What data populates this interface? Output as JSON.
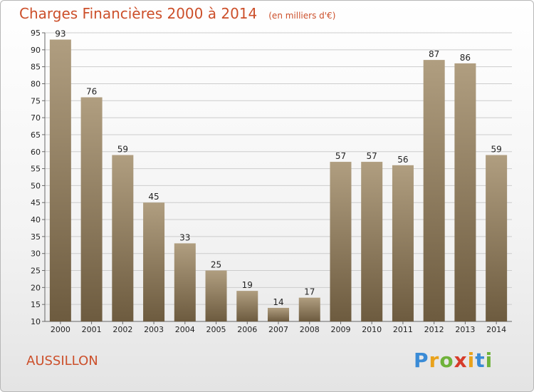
{
  "header": {
    "title": "Charges Financières 2000 à 2014",
    "subtitle": "(en milliers d'€)"
  },
  "footer": {
    "commune": "AUSSILLON",
    "logo": "Proxiti"
  },
  "colors": {
    "bar_top": "#b09e80",
    "bar_bottom": "#6d5b3f",
    "title": "#cc4f2a",
    "grid": "#cccccc"
  },
  "chart_data": {
    "type": "bar",
    "title": "Charges Financières 2000 à 2014",
    "subtitle": "(en milliers d'€)",
    "categories": [
      "2000",
      "2001",
      "2002",
      "2003",
      "2004",
      "2005",
      "2006",
      "2007",
      "2008",
      "2009",
      "2010",
      "2011",
      "2012",
      "2013",
      "2014"
    ],
    "values": [
      93,
      76,
      59,
      45,
      33,
      25,
      19,
      14,
      17,
      57,
      57,
      56,
      87,
      86,
      59
    ],
    "ylim": [
      10,
      95
    ],
    "yticks": [
      10,
      15,
      20,
      25,
      30,
      35,
      40,
      45,
      50,
      55,
      60,
      65,
      70,
      75,
      80,
      85,
      90,
      95
    ],
    "grid": true,
    "data_labels": true
  }
}
